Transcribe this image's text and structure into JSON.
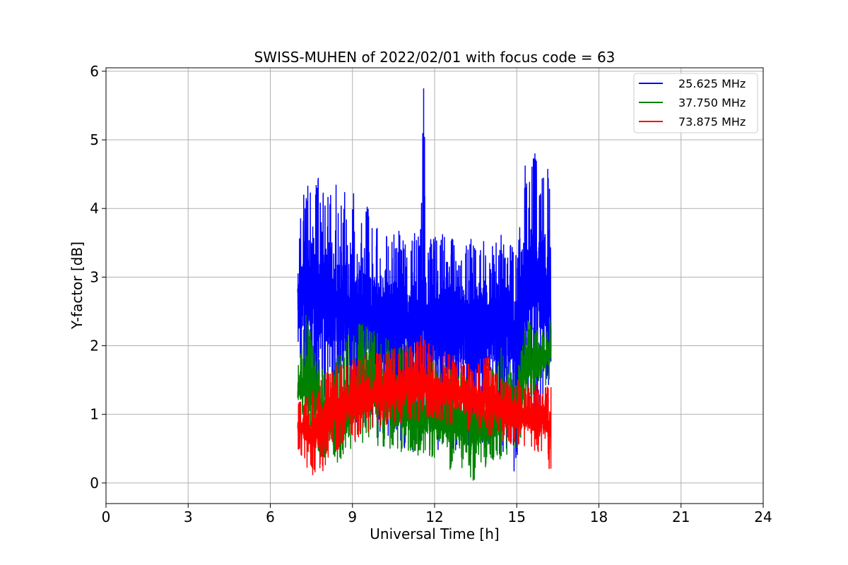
{
  "chart_data": {
    "type": "line",
    "title": "SWISS-MUHEN of 2022/02/01 with focus code = 63",
    "xlabel": "Universal Time [h]",
    "ylabel": "Y-factor [dB]",
    "xlim": [
      0,
      24
    ],
    "ylim": [
      -0.3,
      6.05
    ],
    "xticks": [
      0,
      3,
      6,
      9,
      12,
      15,
      18,
      21,
      24
    ],
    "yticks": [
      0,
      1,
      2,
      3,
      4,
      5,
      6
    ],
    "grid": true,
    "legend_position": "top-right",
    "series": [
      {
        "name": "25.625 MHz",
        "color": "#0000ff",
        "x_start": 7.0,
        "x_end": 16.25,
        "envelope_x": [
          7.0,
          7.2,
          7.5,
          8.0,
          8.5,
          9.0,
          9.5,
          10.0,
          10.5,
          11.0,
          11.5,
          11.6,
          11.7,
          12.0,
          12.5,
          13.0,
          13.5,
          14.0,
          14.5,
          15.0,
          15.3,
          15.6,
          16.0,
          16.25
        ],
        "envelope_upper": [
          3.3,
          4.55,
          4.4,
          4.55,
          4.3,
          4.25,
          4.2,
          3.6,
          3.8,
          3.5,
          3.8,
          5.75,
          3.6,
          3.6,
          3.7,
          3.4,
          3.7,
          3.4,
          3.65,
          3.4,
          4.65,
          4.85,
          4.6,
          4.65
        ],
        "envelope_lower": [
          2.0,
          1.5,
          1.1,
          1.2,
          0.8,
          1.0,
          0.6,
          0.6,
          0.6,
          0.4,
          0.4,
          0.25,
          0.6,
          0.5,
          0.45,
          0.5,
          0.5,
          0.4,
          0.4,
          0.0,
          0.3,
          0.7,
          0.8,
          1.5
        ],
        "center": [
          2.7,
          2.8,
          2.7,
          2.7,
          2.6,
          2.6,
          2.5,
          2.4,
          2.4,
          2.4,
          2.5,
          2.5,
          2.4,
          2.4,
          2.5,
          2.4,
          2.4,
          2.3,
          2.3,
          2.2,
          2.8,
          3.0,
          2.9,
          2.8
        ]
      },
      {
        "name": "37.750 MHz",
        "color": "#008000",
        "x_start": 7.0,
        "x_end": 16.25,
        "envelope_x": [
          7.0,
          7.3,
          7.6,
          8.0,
          8.5,
          9.0,
          9.5,
          10.0,
          10.5,
          11.0,
          11.5,
          12.0,
          12.5,
          13.0,
          13.5,
          14.0,
          14.5,
          15.0,
          15.3,
          15.6,
          16.0,
          16.25
        ],
        "envelope_upper": [
          1.8,
          2.45,
          2.0,
          1.6,
          1.9,
          2.3,
          2.35,
          2.2,
          2.0,
          2.1,
          1.8,
          1.8,
          1.7,
          1.6,
          1.4,
          1.8,
          2.0,
          1.5,
          2.45,
          2.3,
          2.2,
          2.4
        ],
        "envelope_lower": [
          1.0,
          0.8,
          0.5,
          0.3,
          0.3,
          0.5,
          0.6,
          0.5,
          0.5,
          0.4,
          0.4,
          0.3,
          0.2,
          0.2,
          0.0,
          0.3,
          0.3,
          0.5,
          0.8,
          1.2,
          1.3,
          1.5
        ],
        "center": [
          1.3,
          1.5,
          1.3,
          0.9,
          0.8,
          1.1,
          1.5,
          1.3,
          1.1,
          1.0,
          1.0,
          0.9,
          0.9,
          0.9,
          0.8,
          0.9,
          1.0,
          1.0,
          1.6,
          1.8,
          1.8,
          1.9
        ]
      },
      {
        "name": "73.875 MHz",
        "color": "#ff0000",
        "x_start": 7.0,
        "x_end": 16.25,
        "envelope_x": [
          7.0,
          7.3,
          7.6,
          8.0,
          8.5,
          9.0,
          9.5,
          10.0,
          10.5,
          11.0,
          11.5,
          12.0,
          12.5,
          13.0,
          13.5,
          14.0,
          14.5,
          15.0,
          15.5,
          16.0,
          16.25
        ],
        "envelope_upper": [
          1.15,
          1.3,
          1.4,
          1.6,
          1.75,
          1.8,
          1.9,
          1.9,
          2.0,
          2.0,
          2.15,
          2.0,
          1.9,
          1.8,
          1.7,
          1.9,
          1.5,
          1.5,
          1.45,
          1.4,
          1.45
        ],
        "envelope_lower": [
          0.5,
          0.25,
          0.0,
          0.1,
          0.5,
          0.6,
          0.7,
          0.8,
          0.8,
          0.9,
          0.9,
          0.9,
          0.8,
          0.8,
          0.7,
          0.7,
          0.6,
          0.5,
          0.5,
          0.4,
          0.1
        ],
        "center": [
          0.8,
          0.8,
          0.7,
          0.9,
          1.1,
          1.2,
          1.3,
          1.3,
          1.3,
          1.4,
          1.4,
          1.4,
          1.3,
          1.3,
          1.2,
          1.2,
          1.1,
          1.0,
          0.9,
          0.9,
          0.8
        ]
      }
    ]
  }
}
